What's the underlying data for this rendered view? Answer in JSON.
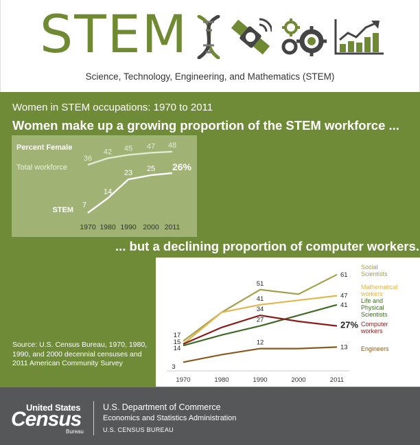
{
  "header": {
    "title": "STEM",
    "subtitle": "Science, Technology, Engineering, and Mathematics (STEM)",
    "icons": [
      "dna-icon",
      "satellite-icon",
      "gears-icon",
      "bar-chart-growth-icon"
    ],
    "accent_color": "#6f8a33"
  },
  "panel": {
    "label": "Women in STEM occupations: 1970 to 2011",
    "headline_top": "Women make up a growing proportion of the STEM workforce ...",
    "headline_bottom": "... but a declining proportion of computer workers.",
    "background_color": "#6f8b38"
  },
  "chart_data": [
    {
      "type": "line",
      "title": "Percent Female",
      "x": [
        "1970",
        "1980",
        "1990",
        "2000",
        "2011"
      ],
      "series": [
        {
          "name": "Total workforce",
          "values": [
            36,
            42,
            45,
            47,
            48
          ],
          "labels": [
            "36",
            "42",
            "45",
            "47",
            "48"
          ],
          "color": "#e3ead2"
        },
        {
          "name": "STEM",
          "values": [
            7,
            14,
            23,
            25,
            26
          ],
          "labels": [
            "7",
            "14",
            "23",
            "25",
            "26%"
          ],
          "color": "#ffffff"
        }
      ],
      "ylim": [
        0,
        50
      ],
      "grid": false,
      "legend": "inline-left"
    },
    {
      "type": "line",
      "x": [
        "1970",
        "1980",
        "1990",
        "2000",
        "2011"
      ],
      "series": [
        {
          "name": "Social Scientists",
          "values": [
            17,
            36,
            51,
            48,
            61
          ],
          "labels": [
            "17",
            "",
            "51",
            "",
            "61"
          ],
          "color": "#a3a14a"
        },
        {
          "name": "Mathematical workers",
          "values": [
            15,
            36,
            41,
            44,
            47
          ],
          "labels": [
            "15",
            "",
            "41",
            "",
            "47"
          ],
          "color": "#e3b54e"
        },
        {
          "name": "Life and Physical Scientists",
          "values": [
            14,
            21,
            27,
            34,
            41
          ],
          "labels": [
            "14",
            "",
            "27",
            "",
            "41"
          ],
          "color": "#3e6b26"
        },
        {
          "name": "Computer workers",
          "values": [
            15,
            26,
            34,
            30,
            27
          ],
          "labels": [
            "",
            "",
            "34",
            "",
            "27%"
          ],
          "color": "#8b1a1a"
        },
        {
          "name": "Engineers",
          "values": [
            3,
            8,
            12,
            12,
            13
          ],
          "labels": [
            "3",
            "",
            "12",
            "",
            "13"
          ],
          "color": "#8a5a1d"
        }
      ],
      "ylim": [
        0,
        65
      ],
      "grid": false,
      "legend": "inline-right"
    }
  ],
  "source": "Source: U.S. Census Bureau, 1970, 1980, 1990, and 2000 decennial censuses and 2011 American Community Survey",
  "footer": {
    "logo_top": "United States",
    "logo_main": "Census",
    "logo_sub": "Bureau",
    "department": "U.S. Department of Commerce",
    "administration": "Economics and Statistics Administration",
    "bureau": "U.S. CENSUS BUREAU",
    "background_color": "#555759"
  }
}
